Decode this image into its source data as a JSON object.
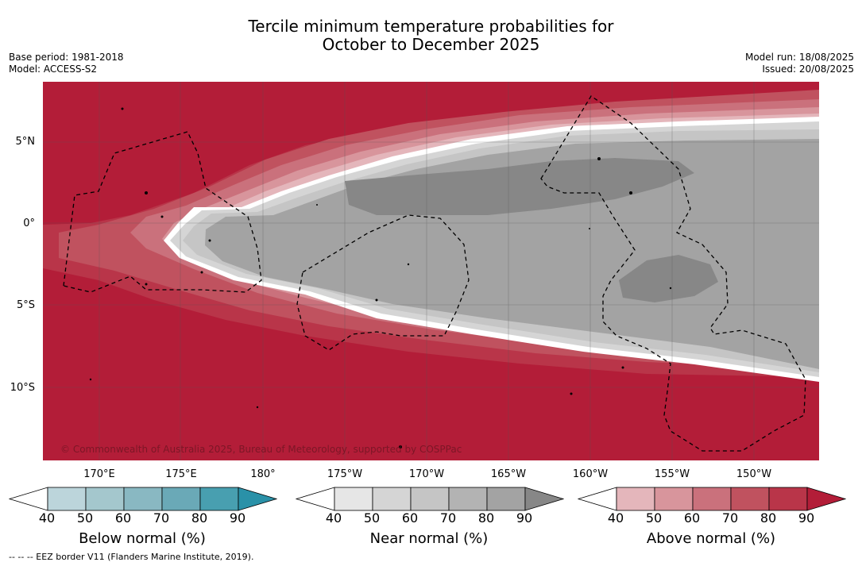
{
  "title": {
    "line1": "Tercile minimum temperature probabilities for",
    "line2": "October to December 2025"
  },
  "meta": {
    "base_period": "Base period: 1981-2018",
    "model": "Model: ACCESS-S2",
    "model_run": "Model run: 18/08/2025",
    "issued": "Issued: 20/08/2025"
  },
  "map": {
    "lat_labels": [
      "5°N",
      "0°",
      "5°S",
      "10°S"
    ],
    "lon_labels": [
      "170°E",
      "175°E",
      "180°",
      "175°W",
      "170°W",
      "165°W",
      "160°W",
      "155°W",
      "150°W"
    ],
    "copyright": "© Commonwealth of Australia 2025, Bureau of Meteorology, supported by COSPPac",
    "colors": {
      "above_dominant": "#b31d38",
      "near_dominant": "#a3a3a3",
      "near_high": "#878787",
      "coastline": "#000000",
      "eez_border": "#000000"
    }
  },
  "colorbars": [
    {
      "title": "Below normal (%)",
      "ticks": [
        "40",
        "50",
        "60",
        "70",
        "80",
        "90"
      ],
      "colors": [
        "#ffffff",
        "#bcd5db",
        "#a4c7cd",
        "#89b8c2",
        "#6aa9b7",
        "#489fb0",
        "#2a91a8"
      ]
    },
    {
      "title": "Near normal (%)",
      "ticks": [
        "40",
        "50",
        "60",
        "70",
        "80",
        "90"
      ],
      "colors": [
        "#ffffff",
        "#e6e6e6",
        "#d5d5d5",
        "#c5c5c5",
        "#b3b3b3",
        "#a3a3a3",
        "#878787"
      ]
    },
    {
      "title": "Above normal (%)",
      "ticks": [
        "40",
        "50",
        "60",
        "70",
        "80",
        "90"
      ],
      "colors": [
        "#ffffff",
        "#e4b6bb",
        "#d8959c",
        "#ca717c",
        "#c0525f",
        "#b93549",
        "#b31d38"
      ]
    }
  ],
  "footer": "--  --  -- EEZ border V11 (Flanders Marine Institute, 2019)."
}
